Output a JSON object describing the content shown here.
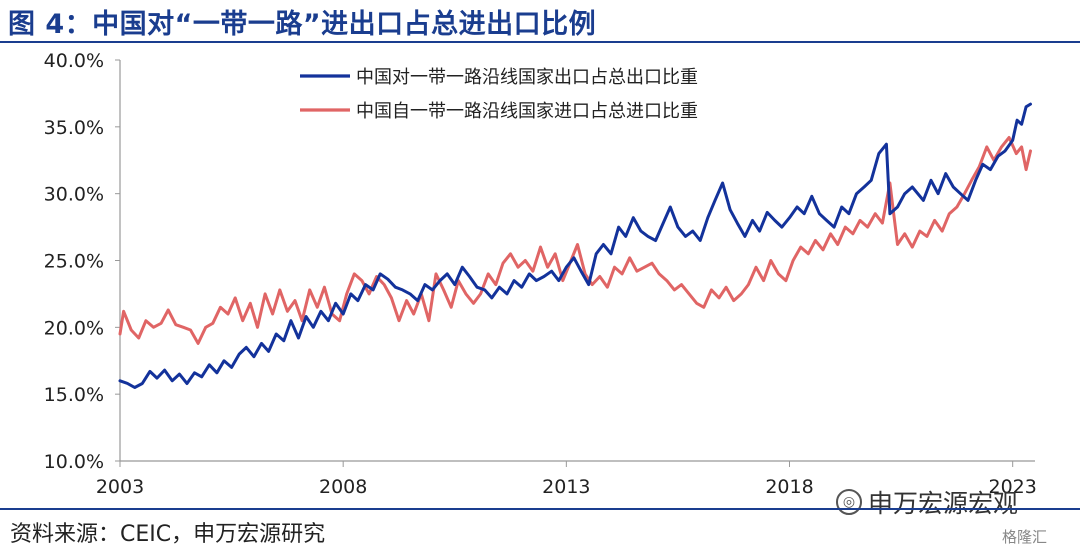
{
  "header": {
    "title": "图 4：中国对“一带一路”进出口占总进出口比例"
  },
  "footer": {
    "source": "资料来源：CEIC，申万宏源研究"
  },
  "watermark": {
    "brand": "申万宏源宏观",
    "badge_icon": "wechat-icon",
    "secondary": "格隆汇"
  },
  "colors": {
    "export": "#13329b",
    "import": "#e06565",
    "axis": "#999999",
    "title": "#1a3d8f"
  },
  "chart_data": {
    "type": "line",
    "title": "",
    "xlabel": "",
    "ylabel": "",
    "xlim": [
      2003,
      2023.5
    ],
    "ylim": [
      0.1,
      0.4
    ],
    "yticks": [
      0.1,
      0.15,
      0.2,
      0.25,
      0.3,
      0.35,
      0.4
    ],
    "ytick_labels": [
      "10.0%",
      "15.0%",
      "20.0%",
      "25.0%",
      "30.0%",
      "35.0%",
      "40.0%"
    ],
    "xticks": [
      2003,
      2008,
      2013,
      2018,
      2023
    ],
    "xtick_labels": [
      "2003",
      "2008",
      "2013",
      "2018",
      "2023"
    ],
    "grid": false,
    "legend": "top-center",
    "series": [
      {
        "name": "中国对一带一路沿线国家出口占总出口比重",
        "color": "#13329b",
        "points": [
          [
            2003.0,
            0.16
          ],
          [
            2003.17,
            0.158
          ],
          [
            2003.33,
            0.155
          ],
          [
            2003.5,
            0.158
          ],
          [
            2003.67,
            0.167
          ],
          [
            2003.83,
            0.162
          ],
          [
            2004.0,
            0.168
          ],
          [
            2004.17,
            0.16
          ],
          [
            2004.33,
            0.165
          ],
          [
            2004.5,
            0.158
          ],
          [
            2004.67,
            0.166
          ],
          [
            2004.83,
            0.163
          ],
          [
            2005.0,
            0.172
          ],
          [
            2005.17,
            0.166
          ],
          [
            2005.33,
            0.175
          ],
          [
            2005.5,
            0.17
          ],
          [
            2005.67,
            0.18
          ],
          [
            2005.83,
            0.185
          ],
          [
            2006.0,
            0.178
          ],
          [
            2006.17,
            0.188
          ],
          [
            2006.33,
            0.182
          ],
          [
            2006.5,
            0.195
          ],
          [
            2006.67,
            0.19
          ],
          [
            2006.83,
            0.205
          ],
          [
            2007.0,
            0.192
          ],
          [
            2007.17,
            0.208
          ],
          [
            2007.33,
            0.2
          ],
          [
            2007.5,
            0.212
          ],
          [
            2007.67,
            0.205
          ],
          [
            2007.83,
            0.218
          ],
          [
            2008.0,
            0.21
          ],
          [
            2008.17,
            0.225
          ],
          [
            2008.33,
            0.22
          ],
          [
            2008.5,
            0.232
          ],
          [
            2008.67,
            0.228
          ],
          [
            2008.83,
            0.24
          ],
          [
            2009.0,
            0.236
          ],
          [
            2009.17,
            0.23
          ],
          [
            2009.33,
            0.228
          ],
          [
            2009.5,
            0.225
          ],
          [
            2009.67,
            0.22
          ],
          [
            2009.83,
            0.232
          ],
          [
            2010.0,
            0.228
          ],
          [
            2010.17,
            0.235
          ],
          [
            2010.33,
            0.24
          ],
          [
            2010.5,
            0.232
          ],
          [
            2010.67,
            0.245
          ],
          [
            2010.83,
            0.238
          ],
          [
            2011.0,
            0.23
          ],
          [
            2011.17,
            0.228
          ],
          [
            2011.33,
            0.222
          ],
          [
            2011.5,
            0.23
          ],
          [
            2011.67,
            0.225
          ],
          [
            2011.83,
            0.235
          ],
          [
            2012.0,
            0.23
          ],
          [
            2012.17,
            0.24
          ],
          [
            2012.33,
            0.235
          ],
          [
            2012.5,
            0.238
          ],
          [
            2012.67,
            0.242
          ],
          [
            2012.83,
            0.235
          ],
          [
            2013.0,
            0.245
          ],
          [
            2013.17,
            0.252
          ],
          [
            2013.33,
            0.242
          ],
          [
            2013.5,
            0.232
          ],
          [
            2013.67,
            0.255
          ],
          [
            2013.83,
            0.262
          ],
          [
            2014.0,
            0.255
          ],
          [
            2014.17,
            0.275
          ],
          [
            2014.33,
            0.268
          ],
          [
            2014.5,
            0.282
          ],
          [
            2014.67,
            0.272
          ],
          [
            2014.83,
            0.268
          ],
          [
            2015.0,
            0.265
          ],
          [
            2015.17,
            0.278
          ],
          [
            2015.33,
            0.29
          ],
          [
            2015.5,
            0.275
          ],
          [
            2015.67,
            0.268
          ],
          [
            2015.83,
            0.272
          ],
          [
            2016.0,
            0.265
          ],
          [
            2016.17,
            0.282
          ],
          [
            2016.33,
            0.295
          ],
          [
            2016.5,
            0.308
          ],
          [
            2016.67,
            0.288
          ],
          [
            2016.83,
            0.278
          ],
          [
            2017.0,
            0.268
          ],
          [
            2017.17,
            0.28
          ],
          [
            2017.33,
            0.272
          ],
          [
            2017.5,
            0.286
          ],
          [
            2017.67,
            0.28
          ],
          [
            2017.83,
            0.275
          ],
          [
            2018.0,
            0.282
          ],
          [
            2018.17,
            0.29
          ],
          [
            2018.33,
            0.285
          ],
          [
            2018.5,
            0.298
          ],
          [
            2018.67,
            0.285
          ],
          [
            2018.83,
            0.28
          ],
          [
            2019.0,
            0.275
          ],
          [
            2019.17,
            0.29
          ],
          [
            2019.33,
            0.285
          ],
          [
            2019.5,
            0.3
          ],
          [
            2019.67,
            0.305
          ],
          [
            2019.83,
            0.31
          ],
          [
            2020.0,
            0.33
          ],
          [
            2020.17,
            0.337
          ],
          [
            2020.25,
            0.285
          ],
          [
            2020.42,
            0.29
          ],
          [
            2020.58,
            0.3
          ],
          [
            2020.75,
            0.305
          ],
          [
            2021.0,
            0.295
          ],
          [
            2021.17,
            0.31
          ],
          [
            2021.33,
            0.3
          ],
          [
            2021.5,
            0.315
          ],
          [
            2021.67,
            0.305
          ],
          [
            2021.83,
            0.3
          ],
          [
            2022.0,
            0.295
          ],
          [
            2022.17,
            0.31
          ],
          [
            2022.33,
            0.322
          ],
          [
            2022.5,
            0.318
          ],
          [
            2022.67,
            0.328
          ],
          [
            2022.83,
            0.332
          ],
          [
            2023.0,
            0.34
          ],
          [
            2023.1,
            0.355
          ],
          [
            2023.2,
            0.352
          ],
          [
            2023.3,
            0.365
          ],
          [
            2023.4,
            0.367
          ]
        ]
      },
      {
        "name": "中国自一带一路沿线国家进口占总进口比重",
        "color": "#e06565",
        "points": [
          [
            2003.0,
            0.195
          ],
          [
            2003.08,
            0.212
          ],
          [
            2003.25,
            0.198
          ],
          [
            2003.42,
            0.192
          ],
          [
            2003.58,
            0.205
          ],
          [
            2003.75,
            0.2
          ],
          [
            2003.92,
            0.203
          ],
          [
            2004.08,
            0.213
          ],
          [
            2004.25,
            0.202
          ],
          [
            2004.42,
            0.2
          ],
          [
            2004.58,
            0.198
          ],
          [
            2004.75,
            0.188
          ],
          [
            2004.92,
            0.2
          ],
          [
            2005.08,
            0.203
          ],
          [
            2005.25,
            0.215
          ],
          [
            2005.42,
            0.21
          ],
          [
            2005.58,
            0.222
          ],
          [
            2005.75,
            0.205
          ],
          [
            2005.92,
            0.218
          ],
          [
            2006.08,
            0.2
          ],
          [
            2006.25,
            0.225
          ],
          [
            2006.42,
            0.21
          ],
          [
            2006.58,
            0.228
          ],
          [
            2006.75,
            0.212
          ],
          [
            2006.92,
            0.22
          ],
          [
            2007.08,
            0.205
          ],
          [
            2007.25,
            0.228
          ],
          [
            2007.42,
            0.215
          ],
          [
            2007.58,
            0.23
          ],
          [
            2007.75,
            0.21
          ],
          [
            2007.92,
            0.205
          ],
          [
            2008.08,
            0.225
          ],
          [
            2008.25,
            0.24
          ],
          [
            2008.42,
            0.235
          ],
          [
            2008.58,
            0.225
          ],
          [
            2008.75,
            0.238
          ],
          [
            2008.92,
            0.232
          ],
          [
            2009.08,
            0.222
          ],
          [
            2009.25,
            0.205
          ],
          [
            2009.42,
            0.22
          ],
          [
            2009.58,
            0.21
          ],
          [
            2009.75,
            0.225
          ],
          [
            2009.92,
            0.205
          ],
          [
            2010.08,
            0.24
          ],
          [
            2010.25,
            0.228
          ],
          [
            2010.42,
            0.215
          ],
          [
            2010.58,
            0.235
          ],
          [
            2010.75,
            0.225
          ],
          [
            2010.92,
            0.218
          ],
          [
            2011.08,
            0.225
          ],
          [
            2011.25,
            0.24
          ],
          [
            2011.42,
            0.232
          ],
          [
            2011.58,
            0.248
          ],
          [
            2011.75,
            0.255
          ],
          [
            2011.92,
            0.245
          ],
          [
            2012.08,
            0.25
          ],
          [
            2012.25,
            0.242
          ],
          [
            2012.42,
            0.26
          ],
          [
            2012.58,
            0.245
          ],
          [
            2012.75,
            0.255
          ],
          [
            2012.92,
            0.235
          ],
          [
            2013.08,
            0.248
          ],
          [
            2013.25,
            0.262
          ],
          [
            2013.42,
            0.24
          ],
          [
            2013.58,
            0.232
          ],
          [
            2013.75,
            0.238
          ],
          [
            2013.92,
            0.23
          ],
          [
            2014.08,
            0.245
          ],
          [
            2014.25,
            0.24
          ],
          [
            2014.42,
            0.252
          ],
          [
            2014.58,
            0.242
          ],
          [
            2014.75,
            0.245
          ],
          [
            2014.92,
            0.248
          ],
          [
            2015.08,
            0.24
          ],
          [
            2015.25,
            0.235
          ],
          [
            2015.42,
            0.228
          ],
          [
            2015.58,
            0.232
          ],
          [
            2015.75,
            0.225
          ],
          [
            2015.92,
            0.218
          ],
          [
            2016.08,
            0.215
          ],
          [
            2016.25,
            0.228
          ],
          [
            2016.42,
            0.222
          ],
          [
            2016.58,
            0.23
          ],
          [
            2016.75,
            0.22
          ],
          [
            2016.92,
            0.225
          ],
          [
            2017.08,
            0.232
          ],
          [
            2017.25,
            0.245
          ],
          [
            2017.42,
            0.235
          ],
          [
            2017.58,
            0.25
          ],
          [
            2017.75,
            0.24
          ],
          [
            2017.92,
            0.235
          ],
          [
            2018.08,
            0.25
          ],
          [
            2018.25,
            0.26
          ],
          [
            2018.42,
            0.255
          ],
          [
            2018.58,
            0.265
          ],
          [
            2018.75,
            0.258
          ],
          [
            2018.92,
            0.27
          ],
          [
            2019.08,
            0.262
          ],
          [
            2019.25,
            0.275
          ],
          [
            2019.42,
            0.27
          ],
          [
            2019.58,
            0.28
          ],
          [
            2019.75,
            0.275
          ],
          [
            2019.92,
            0.285
          ],
          [
            2020.08,
            0.278
          ],
          [
            2020.25,
            0.308
          ],
          [
            2020.42,
            0.262
          ],
          [
            2020.58,
            0.27
          ],
          [
            2020.75,
            0.26
          ],
          [
            2020.92,
            0.272
          ],
          [
            2021.08,
            0.268
          ],
          [
            2021.25,
            0.28
          ],
          [
            2021.42,
            0.272
          ],
          [
            2021.58,
            0.285
          ],
          [
            2021.75,
            0.29
          ],
          [
            2021.92,
            0.3
          ],
          [
            2022.08,
            0.31
          ],
          [
            2022.25,
            0.32
          ],
          [
            2022.42,
            0.335
          ],
          [
            2022.58,
            0.325
          ],
          [
            2022.75,
            0.335
          ],
          [
            2022.92,
            0.342
          ],
          [
            2023.08,
            0.33
          ],
          [
            2023.2,
            0.335
          ],
          [
            2023.3,
            0.318
          ],
          [
            2023.4,
            0.332
          ]
        ]
      }
    ]
  }
}
